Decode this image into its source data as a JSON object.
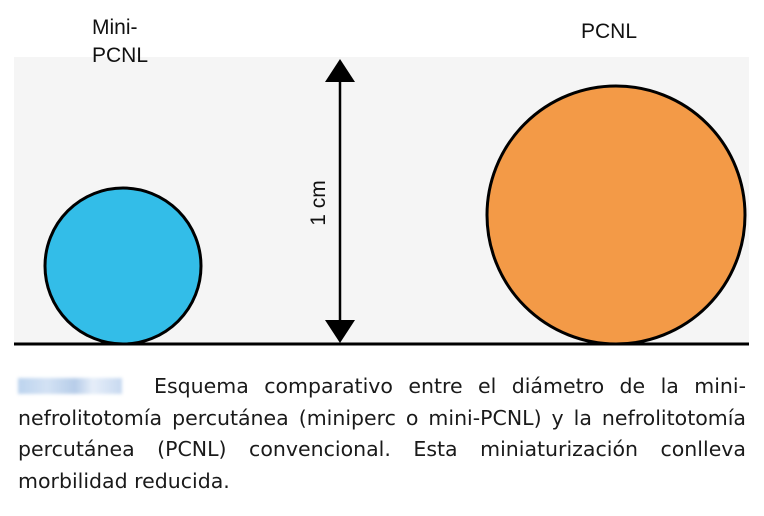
{
  "labels": {
    "mini_line1": "Mini-",
    "mini_line2": "PCNL",
    "pcnl": "PCNL",
    "scale": "1 cm"
  },
  "caption": {
    "text": "Esquema comparativo entre el diámetro de la mini-nefrolitotomía percutánea (miniperc o mini-PCNL) y la nefrolitotomía percutánea (PCNL) convencional. Esta miniaturización conlleva morbilidad reducida."
  },
  "colors": {
    "mini_fill": "#33bde8",
    "pcnl_fill": "#f39a47",
    "stroke": "#000000",
    "panel_bg": "#f5f5f5"
  },
  "icons": {
    "scale_arrow": "double-headed-vertical-arrow"
  }
}
